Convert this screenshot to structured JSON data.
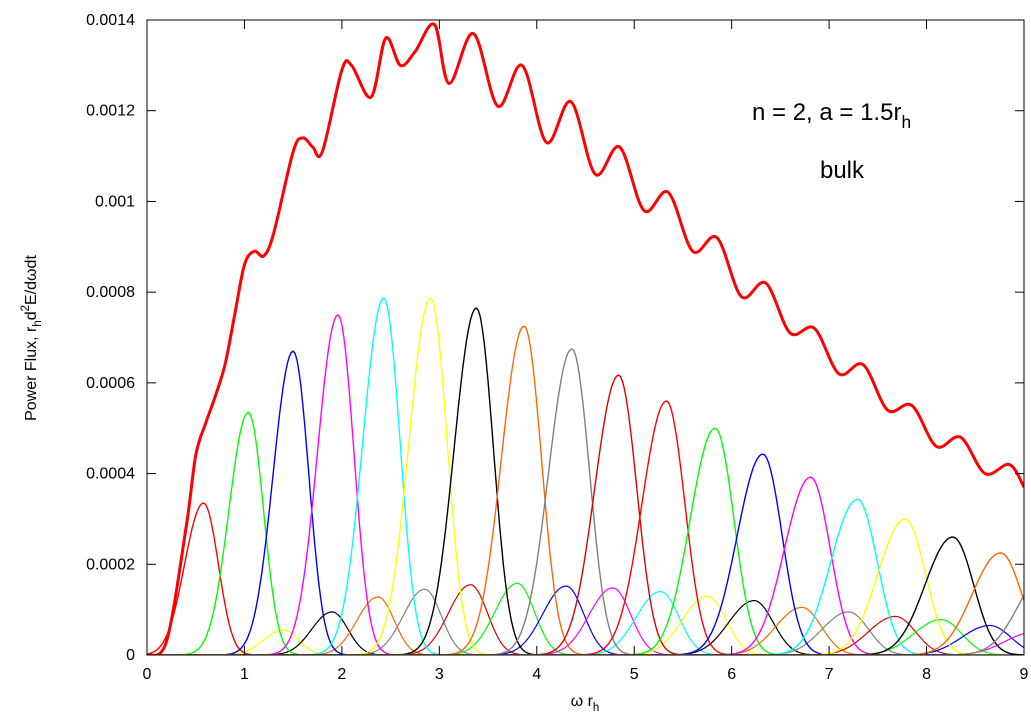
{
  "chart_data": {
    "type": "line",
    "title": "",
    "xlabel": {
      "base": "ω r",
      "sub": "h"
    },
    "ylabel": {
      "p1": "Power Flux, r",
      "sub1": "h",
      "p2": "d",
      "sup1": "2",
      "p3": "E/dωdt"
    },
    "xlim": [
      0,
      9
    ],
    "ylim": [
      0,
      0.0014
    ],
    "xticks": [
      "0",
      "1",
      "2",
      "3",
      "4",
      "5",
      "6",
      "7",
      "8",
      "9"
    ],
    "yticks": [
      "0",
      "0.0002",
      "0.0004",
      "0.0006",
      "0.0008",
      "0.001",
      "0.0012",
      "0.0014"
    ],
    "grid": false,
    "annotations": {
      "line1": {
        "p1": "n = 2, a = 1.5r",
        "sub": "h"
      },
      "line2": "bulk"
    },
    "total": {
      "color": "#ff0000",
      "x": [
        0,
        0.2,
        0.4,
        0.5,
        0.6,
        0.7,
        0.8,
        0.9,
        1.0,
        1.1,
        1.2,
        1.3,
        1.5,
        1.6,
        1.7,
        1.8,
        2.0,
        2.1,
        2.3,
        2.45,
        2.6,
        2.75,
        2.95,
        3.1,
        3.35,
        3.6,
        3.85,
        4.1,
        4.35,
        4.6,
        4.85,
        5.1,
        5.35,
        5.6,
        5.85,
        6.1,
        6.35,
        6.6,
        6.85,
        7.1,
        7.35,
        7.6,
        7.85,
        8.1,
        8.35,
        8.6,
        8.85,
        9.0
      ],
      "y": [
        0,
        3e-05,
        0.00028,
        0.00044,
        0.00051,
        0.00057,
        0.00064,
        0.00075,
        0.00086,
        0.00089,
        0.00088,
        0.00093,
        0.00111,
        0.00114,
        0.00112,
        0.00111,
        0.00129,
        0.0013,
        0.00123,
        0.00136,
        0.0013,
        0.00133,
        0.00139,
        0.00126,
        0.00137,
        0.00121,
        0.0013,
        0.00113,
        0.00122,
        0.00106,
        0.00112,
        0.00098,
        0.00102,
        0.00089,
        0.00092,
        0.00079,
        0.00082,
        0.00071,
        0.00072,
        0.00062,
        0.00064,
        0.00054,
        0.00055,
        0.00046,
        0.00048,
        0.0004,
        0.00042,
        0.00037
      ]
    },
    "primary_peaks": [
      {
        "color": "#ff0000",
        "x": 0.58,
        "y": 0.000335
      },
      {
        "color": "#00ff00",
        "x": 1.04,
        "y": 0.000535
      },
      {
        "color": "#0000ff",
        "x": 1.5,
        "y": 0.00067
      },
      {
        "color": "#ff00ff",
        "x": 1.96,
        "y": 0.00075
      },
      {
        "color": "#00ffff",
        "x": 2.43,
        "y": 0.000787
      },
      {
        "color": "#ffff00",
        "x": 2.91,
        "y": 0.000787
      },
      {
        "color": "#000000",
        "x": 3.38,
        "y": 0.000765
      },
      {
        "color": "#ff6600",
        "x": 3.87,
        "y": 0.000725
      },
      {
        "color": "#808080",
        "x": 4.36,
        "y": 0.000675
      },
      {
        "color": "#dd0000",
        "x": 4.84,
        "y": 0.000617
      },
      {
        "color": "#ff0000",
        "x": 5.33,
        "y": 0.00056
      },
      {
        "color": "#00ff00",
        "x": 5.83,
        "y": 0.0005
      },
      {
        "color": "#0000ff",
        "x": 6.32,
        "y": 0.000443
      },
      {
        "color": "#ff00ff",
        "x": 6.81,
        "y": 0.000392
      },
      {
        "color": "#00ffff",
        "x": 7.29,
        "y": 0.000343
      },
      {
        "color": "#ffff00",
        "x": 7.78,
        "y": 0.0003
      },
      {
        "color": "#000000",
        "x": 8.27,
        "y": 0.00026
      },
      {
        "color": "#ff6600",
        "x": 8.76,
        "y": 0.000225
      },
      {
        "color": "#808080",
        "x": 9.25,
        "y": 0.00019
      }
    ],
    "secondary_peaks": [
      {
        "color": "#ffff00",
        "x": 1.4,
        "y": 5.5e-05
      },
      {
        "color": "#000000",
        "x": 1.9,
        "y": 9.5e-05
      },
      {
        "color": "#ff6600",
        "x": 2.37,
        "y": 0.000128
      },
      {
        "color": "#808080",
        "x": 2.85,
        "y": 0.000145
      },
      {
        "color": "#dd0000",
        "x": 3.32,
        "y": 0.000155
      },
      {
        "color": "#00ff00",
        "x": 3.8,
        "y": 0.000158
      },
      {
        "color": "#0000ff",
        "x": 4.3,
        "y": 0.000152
      },
      {
        "color": "#ff00ff",
        "x": 4.78,
        "y": 0.000148
      },
      {
        "color": "#00ffff",
        "x": 5.27,
        "y": 0.00014
      },
      {
        "color": "#ffff00",
        "x": 5.75,
        "y": 0.00013
      },
      {
        "color": "#000000",
        "x": 6.23,
        "y": 0.00012
      },
      {
        "color": "#ff6600",
        "x": 6.72,
        "y": 0.000105
      },
      {
        "color": "#808080",
        "x": 7.2,
        "y": 9.5e-05
      },
      {
        "color": "#dd0000",
        "x": 7.68,
        "y": 8.5e-05
      },
      {
        "color": "#00ff00",
        "x": 8.15,
        "y": 7.8e-05
      },
      {
        "color": "#0000ff",
        "x": 8.65,
        "y": 6.5e-05
      },
      {
        "color": "#ff00ff",
        "x": 9.1,
        "y": 5e-05
      }
    ]
  }
}
